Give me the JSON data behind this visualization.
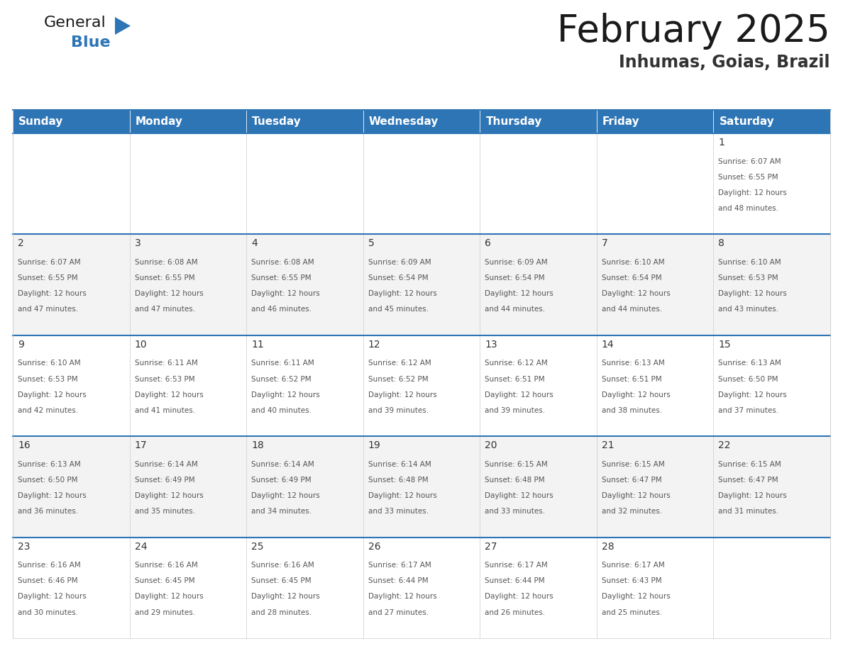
{
  "title": "February 2025",
  "subtitle": "Inhumas, Goias, Brazil",
  "header_color": "#2E75B6",
  "header_text_color": "#FFFFFF",
  "border_color": "#2E75B6",
  "day_names": [
    "Sunday",
    "Monday",
    "Tuesday",
    "Wednesday",
    "Thursday",
    "Friday",
    "Saturday"
  ],
  "days": [
    {
      "day": 1,
      "col": 6,
      "row": 0,
      "sunrise": "6:07 AM",
      "sunset": "6:55 PM",
      "daylight_hours": 12,
      "daylight_minutes": 48
    },
    {
      "day": 2,
      "col": 0,
      "row": 1,
      "sunrise": "6:07 AM",
      "sunset": "6:55 PM",
      "daylight_hours": 12,
      "daylight_minutes": 47
    },
    {
      "day": 3,
      "col": 1,
      "row": 1,
      "sunrise": "6:08 AM",
      "sunset": "6:55 PM",
      "daylight_hours": 12,
      "daylight_minutes": 47
    },
    {
      "day": 4,
      "col": 2,
      "row": 1,
      "sunrise": "6:08 AM",
      "sunset": "6:55 PM",
      "daylight_hours": 12,
      "daylight_minutes": 46
    },
    {
      "day": 5,
      "col": 3,
      "row": 1,
      "sunrise": "6:09 AM",
      "sunset": "6:54 PM",
      "daylight_hours": 12,
      "daylight_minutes": 45
    },
    {
      "day": 6,
      "col": 4,
      "row": 1,
      "sunrise": "6:09 AM",
      "sunset": "6:54 PM",
      "daylight_hours": 12,
      "daylight_minutes": 44
    },
    {
      "day": 7,
      "col": 5,
      "row": 1,
      "sunrise": "6:10 AM",
      "sunset": "6:54 PM",
      "daylight_hours": 12,
      "daylight_minutes": 44
    },
    {
      "day": 8,
      "col": 6,
      "row": 1,
      "sunrise": "6:10 AM",
      "sunset": "6:53 PM",
      "daylight_hours": 12,
      "daylight_minutes": 43
    },
    {
      "day": 9,
      "col": 0,
      "row": 2,
      "sunrise": "6:10 AM",
      "sunset": "6:53 PM",
      "daylight_hours": 12,
      "daylight_minutes": 42
    },
    {
      "day": 10,
      "col": 1,
      "row": 2,
      "sunrise": "6:11 AM",
      "sunset": "6:53 PM",
      "daylight_hours": 12,
      "daylight_minutes": 41
    },
    {
      "day": 11,
      "col": 2,
      "row": 2,
      "sunrise": "6:11 AM",
      "sunset": "6:52 PM",
      "daylight_hours": 12,
      "daylight_minutes": 40
    },
    {
      "day": 12,
      "col": 3,
      "row": 2,
      "sunrise": "6:12 AM",
      "sunset": "6:52 PM",
      "daylight_hours": 12,
      "daylight_minutes": 39
    },
    {
      "day": 13,
      "col": 4,
      "row": 2,
      "sunrise": "6:12 AM",
      "sunset": "6:51 PM",
      "daylight_hours": 12,
      "daylight_minutes": 39
    },
    {
      "day": 14,
      "col": 5,
      "row": 2,
      "sunrise": "6:13 AM",
      "sunset": "6:51 PM",
      "daylight_hours": 12,
      "daylight_minutes": 38
    },
    {
      "day": 15,
      "col": 6,
      "row": 2,
      "sunrise": "6:13 AM",
      "sunset": "6:50 PM",
      "daylight_hours": 12,
      "daylight_minutes": 37
    },
    {
      "day": 16,
      "col": 0,
      "row": 3,
      "sunrise": "6:13 AM",
      "sunset": "6:50 PM",
      "daylight_hours": 12,
      "daylight_minutes": 36
    },
    {
      "day": 17,
      "col": 1,
      "row": 3,
      "sunrise": "6:14 AM",
      "sunset": "6:49 PM",
      "daylight_hours": 12,
      "daylight_minutes": 35
    },
    {
      "day": 18,
      "col": 2,
      "row": 3,
      "sunrise": "6:14 AM",
      "sunset": "6:49 PM",
      "daylight_hours": 12,
      "daylight_minutes": 34
    },
    {
      "day": 19,
      "col": 3,
      "row": 3,
      "sunrise": "6:14 AM",
      "sunset": "6:48 PM",
      "daylight_hours": 12,
      "daylight_minutes": 33
    },
    {
      "day": 20,
      "col": 4,
      "row": 3,
      "sunrise": "6:15 AM",
      "sunset": "6:48 PM",
      "daylight_hours": 12,
      "daylight_minutes": 33
    },
    {
      "day": 21,
      "col": 5,
      "row": 3,
      "sunrise": "6:15 AM",
      "sunset": "6:47 PM",
      "daylight_hours": 12,
      "daylight_minutes": 32
    },
    {
      "day": 22,
      "col": 6,
      "row": 3,
      "sunrise": "6:15 AM",
      "sunset": "6:47 PM",
      "daylight_hours": 12,
      "daylight_minutes": 31
    },
    {
      "day": 23,
      "col": 0,
      "row": 4,
      "sunrise": "6:16 AM",
      "sunset": "6:46 PM",
      "daylight_hours": 12,
      "daylight_minutes": 30
    },
    {
      "day": 24,
      "col": 1,
      "row": 4,
      "sunrise": "6:16 AM",
      "sunset": "6:45 PM",
      "daylight_hours": 12,
      "daylight_minutes": 29
    },
    {
      "day": 25,
      "col": 2,
      "row": 4,
      "sunrise": "6:16 AM",
      "sunset": "6:45 PM",
      "daylight_hours": 12,
      "daylight_minutes": 28
    },
    {
      "day": 26,
      "col": 3,
      "row": 4,
      "sunrise": "6:17 AM",
      "sunset": "6:44 PM",
      "daylight_hours": 12,
      "daylight_minutes": 27
    },
    {
      "day": 27,
      "col": 4,
      "row": 4,
      "sunrise": "6:17 AM",
      "sunset": "6:44 PM",
      "daylight_hours": 12,
      "daylight_minutes": 26
    },
    {
      "day": 28,
      "col": 5,
      "row": 4,
      "sunrise": "6:17 AM",
      "sunset": "6:43 PM",
      "daylight_hours": 12,
      "daylight_minutes": 25
    }
  ],
  "num_rows": 5,
  "num_cols": 7,
  "logo_text_general": "General",
  "logo_text_blue": "Blue",
  "logo_triangle_color": "#2E75B6",
  "title_fontsize": 38,
  "subtitle_fontsize": 17,
  "header_fontsize": 11,
  "day_number_fontsize": 10,
  "cell_text_fontsize": 7.5
}
